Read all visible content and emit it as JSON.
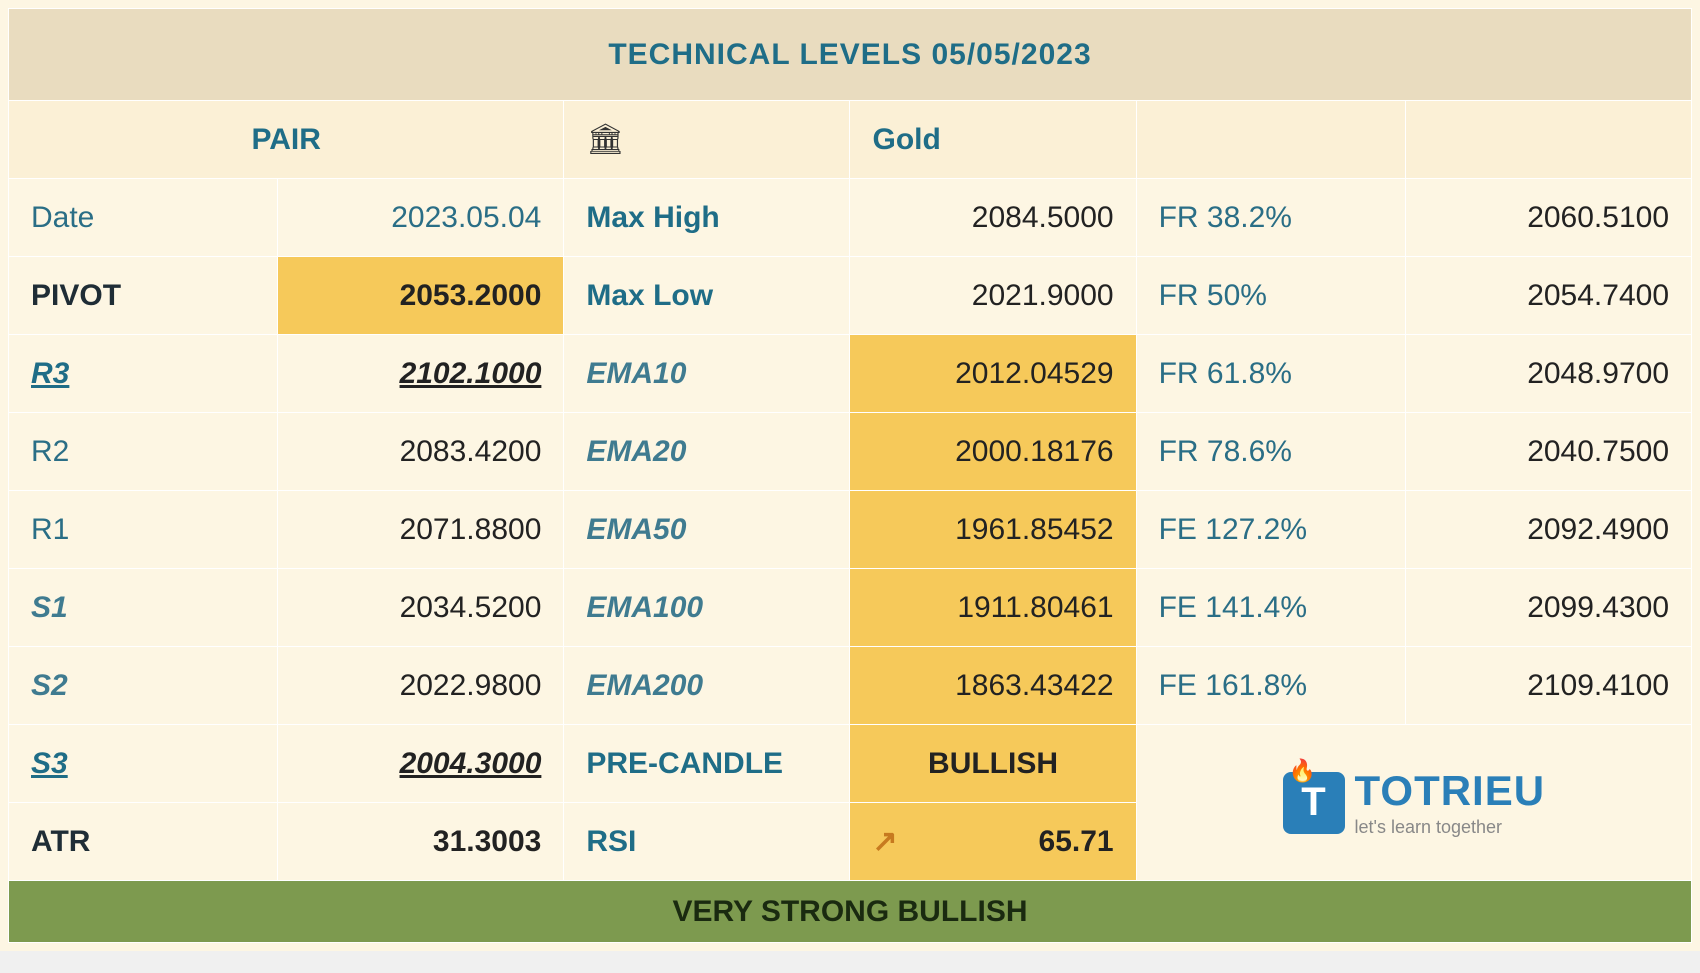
{
  "title": "TECHNICAL LEVELS 05/05/2023",
  "header": {
    "pair_label": "PAIR",
    "pair_icon": "🏛",
    "pair_name": "Gold"
  },
  "col1": {
    "date_label": "Date",
    "date_value": "2023.05.04",
    "pivot_label": "PIVOT",
    "pivot_value": "2053.2000",
    "r3_label": "R3",
    "r3_value": "2102.1000",
    "r2_label": "R2",
    "r2_value": "2083.4200",
    "r1_label": "R1",
    "r1_value": "2071.8800",
    "s1_label": "S1",
    "s1_value": "2034.5200",
    "s2_label": "S2",
    "s2_value": "2022.9800",
    "s3_label": "S3",
    "s3_value": "2004.3000",
    "atr_label": "ATR",
    "atr_value": "31.3003"
  },
  "col2": {
    "maxhigh_label": "Max High",
    "maxhigh_value": "2084.5000",
    "maxlow_label": "Max Low",
    "maxlow_value": "2021.9000",
    "ema10_label": "EMA10",
    "ema10_value": "2012.04529",
    "ema20_label": "EMA20",
    "ema20_value": "2000.18176",
    "ema50_label": "EMA50",
    "ema50_value": "1961.85452",
    "ema100_label": "EMA100",
    "ema100_value": "1911.80461",
    "ema200_label": "EMA200",
    "ema200_value": "1863.43422",
    "precandle_label": "PRE-CANDLE",
    "precandle_value": "BULLISH",
    "rsi_label": "RSI",
    "rsi_arrow": "↗",
    "rsi_value": "65.71"
  },
  "col3": {
    "fr382_label": "FR 38.2%",
    "fr382_value": "2060.5100",
    "fr50_label": "FR 50%",
    "fr50_value": "2054.7400",
    "fr618_label": "FR 61.8%",
    "fr618_value": "2048.9700",
    "fr786_label": "FR 78.6%",
    "fr786_value": "2040.7500",
    "fe1272_label": "FE 127.2%",
    "fe1272_value": "2092.4900",
    "fe1414_label": "FE 141.4%",
    "fe1414_value": "2099.4300",
    "fe1618_label": "FE 161.8%",
    "fe1618_value": "2109.4100"
  },
  "logo": {
    "letter": "T",
    "brand": "TOTRIEU",
    "tagline": "let's learn together"
  },
  "status": "VERY STRONG BULLISH",
  "colors": {
    "background": "#fdf6e3",
    "header_band": "#e9dcbf",
    "subheader_band": "#fbf0d6",
    "highlight_gold": "#f6c95a",
    "status_green": "#7d9a4f",
    "teal_text": "#1f6d87",
    "muted_teal": "#2a6e86",
    "logo_blue": "#2a7fb8",
    "border": "#ffffff"
  },
  "typography": {
    "title_fontsize_pt": 28,
    "cell_fontsize_pt": 22,
    "font_family": "Arial"
  },
  "layout": {
    "columns": 6,
    "rows_data": 9,
    "highlight_cells": [
      "pivot_value",
      "ema10_value",
      "ema20_value",
      "ema50_value",
      "ema100_value",
      "ema200_value",
      "precandle_value",
      "rsi_value"
    ],
    "underline_italic_bold_cells": [
      "r3_label",
      "r3_value",
      "s3_label",
      "s3_value"
    ]
  },
  "watermark": {
    "main": "TOTRIEU",
    "sub": "let's learn together"
  }
}
